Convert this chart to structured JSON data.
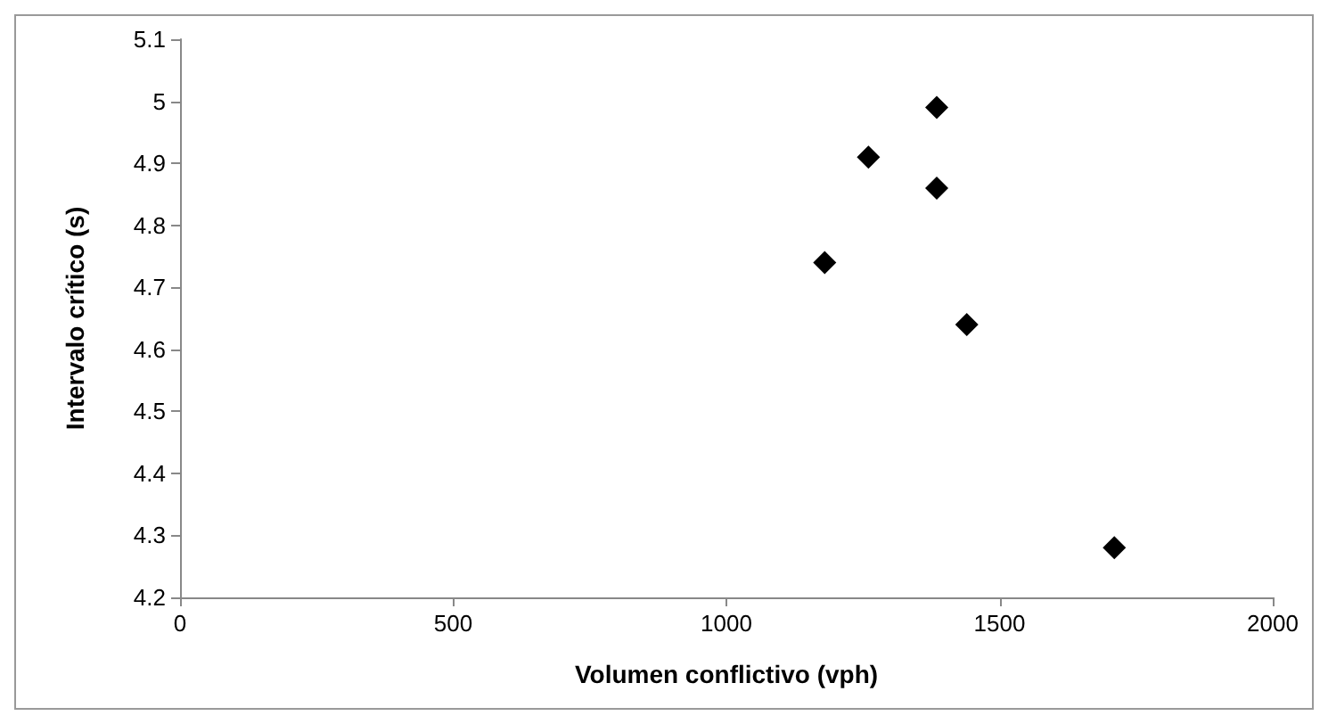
{
  "chart_data": {
    "type": "scatter",
    "xlabel": "Volumen conflictivo (vph)",
    "ylabel": "Intervalo crítico (s)",
    "x": [
      1180,
      1260,
      1385,
      1385,
      1440,
      1710
    ],
    "values": [
      4.74,
      4.91,
      4.99,
      4.86,
      4.64,
      4.28
    ],
    "color": "#000000",
    "marker": "diamond",
    "xlim": [
      0,
      2000
    ],
    "xticks": [
      0,
      500,
      1000,
      1500,
      2000
    ],
    "ylim": [
      4.2,
      5.1
    ],
    "yticks": [
      4.2,
      4.3,
      4.4,
      4.5,
      4.6,
      4.7,
      4.8,
      4.9,
      5,
      5.1
    ],
    "grid": false
  }
}
